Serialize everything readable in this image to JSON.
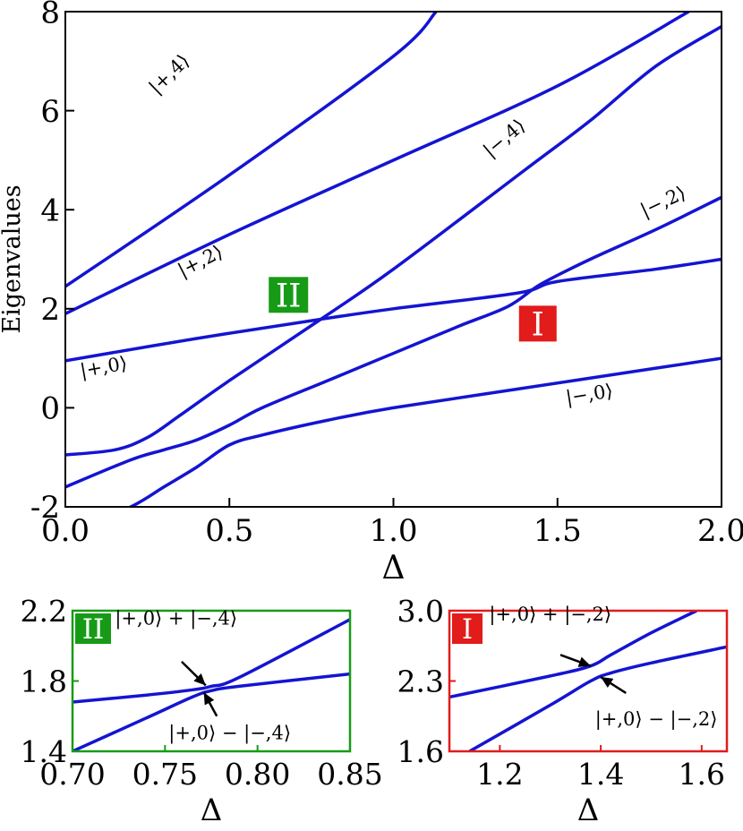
{
  "chart_data": [
    {
      "type": "line",
      "xlabel": "Δ",
      "ylabel": "Eigenvalues",
      "xlim": [
        0.0,
        2.0
      ],
      "ylim": [
        -2,
        8
      ],
      "xticks": [
        "0.0",
        "0.5",
        "1.0",
        "1.5",
        "2.0"
      ],
      "yticks": [
        "-2",
        "0",
        "2",
        "4",
        "6",
        "8"
      ],
      "series": [
        {
          "label": "|−,0⟩",
          "x": [
            0.0,
            0.2,
            0.3,
            0.4,
            0.5,
            0.6,
            0.8,
            1.0,
            1.4,
            1.8,
            2.0
          ],
          "y": [
            -2.6,
            -2.0,
            -1.6,
            -1.2,
            -0.75,
            -0.55,
            -0.25,
            0.0,
            0.4,
            0.8,
            1.0
          ]
        },
        {
          "label": "|−,2⟩",
          "x": [
            0.0,
            0.2,
            0.3,
            0.4,
            0.5,
            0.6,
            0.8,
            1.0,
            1.2,
            1.35,
            1.45,
            1.6,
            1.8,
            2.0
          ],
          "y": [
            -1.6,
            -1.05,
            -0.85,
            -0.65,
            -0.35,
            0.0,
            0.55,
            1.1,
            1.65,
            2.05,
            2.5,
            3.0,
            3.6,
            4.25
          ]
        },
        {
          "label": "|+,0⟩",
          "x": [
            0.0,
            0.4,
            0.77,
            1.0,
            1.38,
            1.5,
            1.8,
            2.0
          ],
          "y": [
            0.95,
            1.4,
            1.78,
            2.0,
            2.32,
            2.55,
            2.8,
            3.0
          ]
        },
        {
          "label": "|−,4⟩",
          "x": [
            0.0,
            0.15,
            0.25,
            0.35,
            0.5,
            0.77,
            1.0,
            1.4,
            1.6,
            1.8,
            2.0
          ],
          "y": [
            -0.95,
            -0.85,
            -0.6,
            -0.15,
            0.55,
            1.75,
            2.8,
            4.8,
            5.8,
            6.9,
            7.7
          ]
        },
        {
          "label": "|+,2⟩",
          "x": [
            0.0,
            0.5,
            1.0,
            1.5,
            1.9
          ],
          "y": [
            1.9,
            3.5,
            5.0,
            6.5,
            8.0
          ]
        },
        {
          "label": "|+,4⟩",
          "x": [
            0.0,
            0.5,
            1.0,
            1.13
          ],
          "y": [
            2.45,
            4.7,
            7.1,
            8.0
          ]
        }
      ],
      "box_labels": [
        {
          "text": "II",
          "color": "#179b16",
          "x": 0.68,
          "y": 2.28
        },
        {
          "text": "I",
          "color": "#e21b1b",
          "x": 1.44,
          "y": 1.7
        }
      ],
      "annotations": [
        {
          "text": "|+,4⟩",
          "x": 0.33,
          "y": 6.65,
          "angle": -44
        },
        {
          "text": "|+,2⟩",
          "x": 0.42,
          "y": 2.85,
          "angle": -27
        },
        {
          "text": "|+,0⟩",
          "x": 0.12,
          "y": 0.7,
          "angle": -10
        },
        {
          "text": "|−,4⟩",
          "x": 1.35,
          "y": 5.35,
          "angle": -40
        },
        {
          "text": "|−,2⟩",
          "x": 1.83,
          "y": 4.05,
          "angle": -25
        },
        {
          "text": "|−,0⟩",
          "x": 1.6,
          "y": 0.15,
          "angle": -9
        }
      ]
    },
    {
      "type": "line",
      "xlabel": "Δ",
      "xlim": [
        0.7,
        0.85
      ],
      "ylim": [
        1.4,
        2.2
      ],
      "xticks": [
        "0.70",
        "0.75",
        "0.80",
        "0.85"
      ],
      "yticks": [
        "1.4",
        "1.8",
        "2.2"
      ],
      "frame_color": "#179b16",
      "tag": "II",
      "series": [
        {
          "label": "|+,0⟩ + |−,4⟩",
          "x": [
            0.7,
            0.74,
            0.765,
            0.775,
            0.79,
            0.85
          ],
          "y": [
            1.68,
            1.72,
            1.75,
            1.77,
            1.82,
            2.15
          ]
        },
        {
          "label": "|+,0⟩ − |−,4⟩",
          "x": [
            0.7,
            0.74,
            0.765,
            0.775,
            0.79,
            0.85
          ],
          "y": [
            1.4,
            1.59,
            1.71,
            1.745,
            1.77,
            1.84
          ]
        }
      ],
      "annotations": [
        {
          "text": "|+,0⟩ + |−,4⟩",
          "x": 0.756,
          "y": 2.12,
          "arrow_to": [
            0.772,
            1.775
          ],
          "arrow_from": [
            0.759,
            1.91
          ]
        },
        {
          "text": "|+,0⟩ − |−,4⟩",
          "x": 0.785,
          "y": 1.47,
          "arrow_to": [
            0.771,
            1.735
          ],
          "arrow_from": [
            0.778,
            1.6
          ]
        }
      ]
    },
    {
      "type": "line",
      "xlabel": "Δ",
      "xlim": [
        1.1,
        1.65
      ],
      "ylim": [
        1.6,
        3.0
      ],
      "xticks": [
        "1.2",
        "1.4",
        "1.6"
      ],
      "yticks": [
        "1.6",
        "2.3",
        "3.0"
      ],
      "frame_color": "#e21b1b",
      "tag": "I",
      "series": [
        {
          "label": "|+,0⟩ + |−,2⟩",
          "x": [
            1.1,
            1.3,
            1.38,
            1.42,
            1.5,
            1.59
          ],
          "y": [
            2.14,
            2.35,
            2.45,
            2.56,
            2.78,
            3.0
          ]
        },
        {
          "label": "|+,0⟩ − |−,2⟩",
          "x": [
            1.14,
            1.3,
            1.38,
            1.42,
            1.5,
            1.65
          ],
          "y": [
            1.6,
            2.06,
            2.3,
            2.38,
            2.48,
            2.64
          ]
        }
      ],
      "annotations": [
        {
          "text": "|+,0⟩ + |−,2⟩",
          "x": 1.3,
          "y": 2.9,
          "arrow_to": [
            1.38,
            2.45
          ],
          "arrow_from": [
            1.32,
            2.56
          ]
        },
        {
          "text": "|+,0⟩ − |−,2⟩",
          "x": 1.51,
          "y": 1.86,
          "arrow_to": [
            1.4,
            2.34
          ],
          "arrow_from": [
            1.45,
            2.18
          ]
        }
      ]
    }
  ]
}
